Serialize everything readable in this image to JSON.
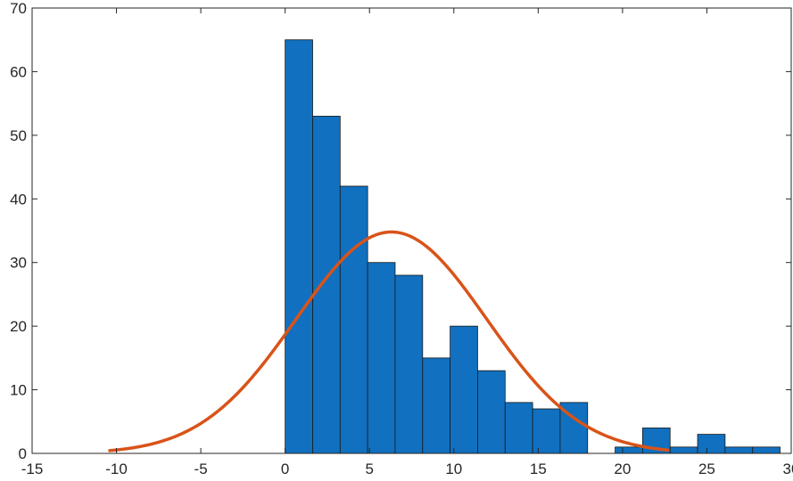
{
  "chart_data": {
    "type": "bar",
    "title": "",
    "xlabel": "",
    "ylabel": "",
    "xlim": [
      -15,
      30
    ],
    "ylim": [
      0,
      70
    ],
    "xticks": [
      "-15",
      "-10",
      "-5",
      "0",
      "5",
      "10",
      "15",
      "20",
      "25",
      "30"
    ],
    "yticks": [
      "0",
      "10",
      "20",
      "30",
      "40",
      "50",
      "60",
      "70"
    ],
    "grid": false,
    "box": true,
    "histogram": {
      "bin_start": 0,
      "bin_width": 1.63,
      "counts": [
        65,
        53,
        42,
        30,
        28,
        15,
        20,
        13,
        8,
        7,
        8,
        0,
        1,
        4,
        1,
        3,
        1,
        1
      ],
      "color": "#1170BF"
    },
    "fit_curve": {
      "type": "normal",
      "mean": 6.3,
      "peak": 34.8,
      "sd": 5.65,
      "x_range": [
        -10.4,
        22.7
      ],
      "color": "#D95319"
    }
  }
}
